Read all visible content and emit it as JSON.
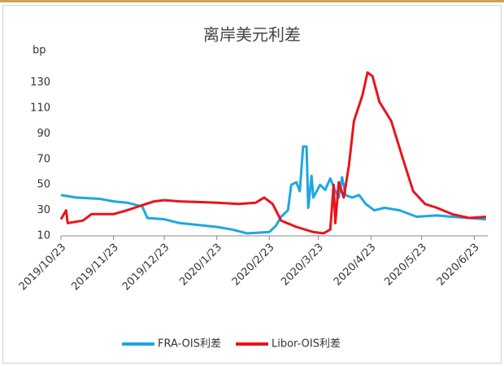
{
  "chart_data": {
    "type": "line",
    "title": "离岸美元利差",
    "ylabel": "bp",
    "xlim": [
      "2019/10/23",
      "2020/7/1"
    ],
    "xticks": [
      "2019/10/23",
      "2019/11/23",
      "2019/12/23",
      "2020/1/23",
      "2020/2/23",
      "2020/3/23",
      "2020/4/23",
      "2020/5/23",
      "2020/6/23"
    ],
    "ylim": [
      10,
      140
    ],
    "yticks": [
      10,
      30,
      50,
      70,
      90,
      110,
      130
    ],
    "legend": "bottom",
    "series": [
      {
        "name": "FRA-OIS利差",
        "color": "#1ea7e0",
        "x": [
          "2019/10/23",
          "2019/11/1",
          "2019/11/15",
          "2019/11/23",
          "2019/12/1",
          "2019/12/10",
          "2019/12/13",
          "2019/12/23",
          "2020/1/1",
          "2020/1/23",
          "2020/2/1",
          "2020/2/10",
          "2020/2/23",
          "2020/2/27",
          "2020/3/1",
          "2020/3/5",
          "2020/3/7",
          "2020/3/10",
          "2020/3/12",
          "2020/3/14",
          "2020/3/16",
          "2020/3/17",
          "2020/3/19",
          "2020/3/20",
          "2020/3/24",
          "2020/3/27",
          "2020/3/30",
          "2020/4/2",
          "2020/4/4",
          "2020/4/6",
          "2020/4/8",
          "2020/4/12",
          "2020/4/16",
          "2020/4/20",
          "2020/4/25",
          "2020/5/1",
          "2020/5/10",
          "2020/5/20",
          "2020/6/1",
          "2020/6/10",
          "2020/6/20",
          "2020/6/30"
        ],
        "values": [
          42,
          40,
          39,
          37,
          36,
          33,
          24,
          23,
          20,
          17,
          15,
          12,
          13,
          18,
          25,
          30,
          50,
          52,
          45,
          80,
          80,
          32,
          57,
          40,
          50,
          46,
          55,
          45,
          40,
          56,
          42,
          40,
          42,
          35,
          30,
          32,
          30,
          25,
          26,
          25,
          24,
          23
        ]
      },
      {
        "name": "Libor-OIS利差",
        "color": "#e8141b",
        "x": [
          "2019/10/23",
          "2019/10/26",
          "2019/10/27",
          "2019/11/5",
          "2019/11/10",
          "2019/11/23",
          "2019/12/1",
          "2019/12/10",
          "2019/12/17",
          "2019/12/23",
          "2020/1/1",
          "2020/1/23",
          "2020/2/5",
          "2020/2/15",
          "2020/2/20",
          "2020/2/25",
          "2020/3/1",
          "2020/3/10",
          "2020/3/20",
          "2020/3/26",
          "2020/3/30",
          "2020/4/1",
          "2020/4/2",
          "2020/4/4",
          "2020/4/7",
          "2020/4/10",
          "2020/4/13",
          "2020/4/18",
          "2020/4/21",
          "2020/4/24",
          "2020/4/28",
          "2020/5/5",
          "2020/5/12",
          "2020/5/18",
          "2020/5/25",
          "2020/6/1",
          "2020/6/10",
          "2020/6/20",
          "2020/6/30"
        ],
        "values": [
          23,
          30,
          20,
          22,
          27,
          27,
          30,
          34,
          37,
          38,
          37,
          36,
          35,
          36,
          40,
          35,
          22,
          17,
          13,
          12,
          15,
          50,
          20,
          52,
          40,
          65,
          100,
          120,
          138,
          135,
          115,
          100,
          70,
          45,
          35,
          32,
          27,
          24,
          25
        ]
      }
    ]
  }
}
